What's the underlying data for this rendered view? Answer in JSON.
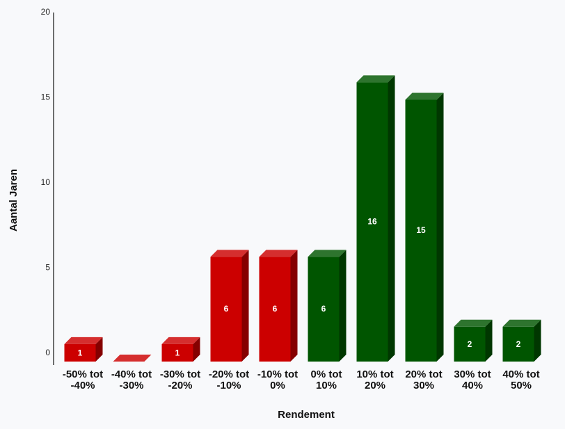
{
  "chart_data": {
    "type": "bar3d",
    "x_label": "Rendement",
    "y_label": "Aantal Jaren",
    "categories": [
      "-50% tot -40%",
      "-40% tot -30%",
      "-30% tot -20%",
      "-20% tot -10%",
      "-10% tot 0%",
      "0% tot 10%",
      "10% tot 20%",
      "20% tot 30%",
      "30% tot 40%",
      "40% tot 50%"
    ],
    "values": [
      1,
      0,
      1,
      6,
      6,
      6,
      16,
      15,
      2,
      2
    ],
    "colors": [
      "#cc0000",
      "#cc0000",
      "#cc0000",
      "#cc0000",
      "#cc0000",
      "#005500",
      "#005500",
      "#005500",
      "#005500",
      "#005500"
    ],
    "ylim": [
      0,
      20
    ],
    "yticks": [
      0,
      5,
      10,
      15,
      20
    ]
  }
}
